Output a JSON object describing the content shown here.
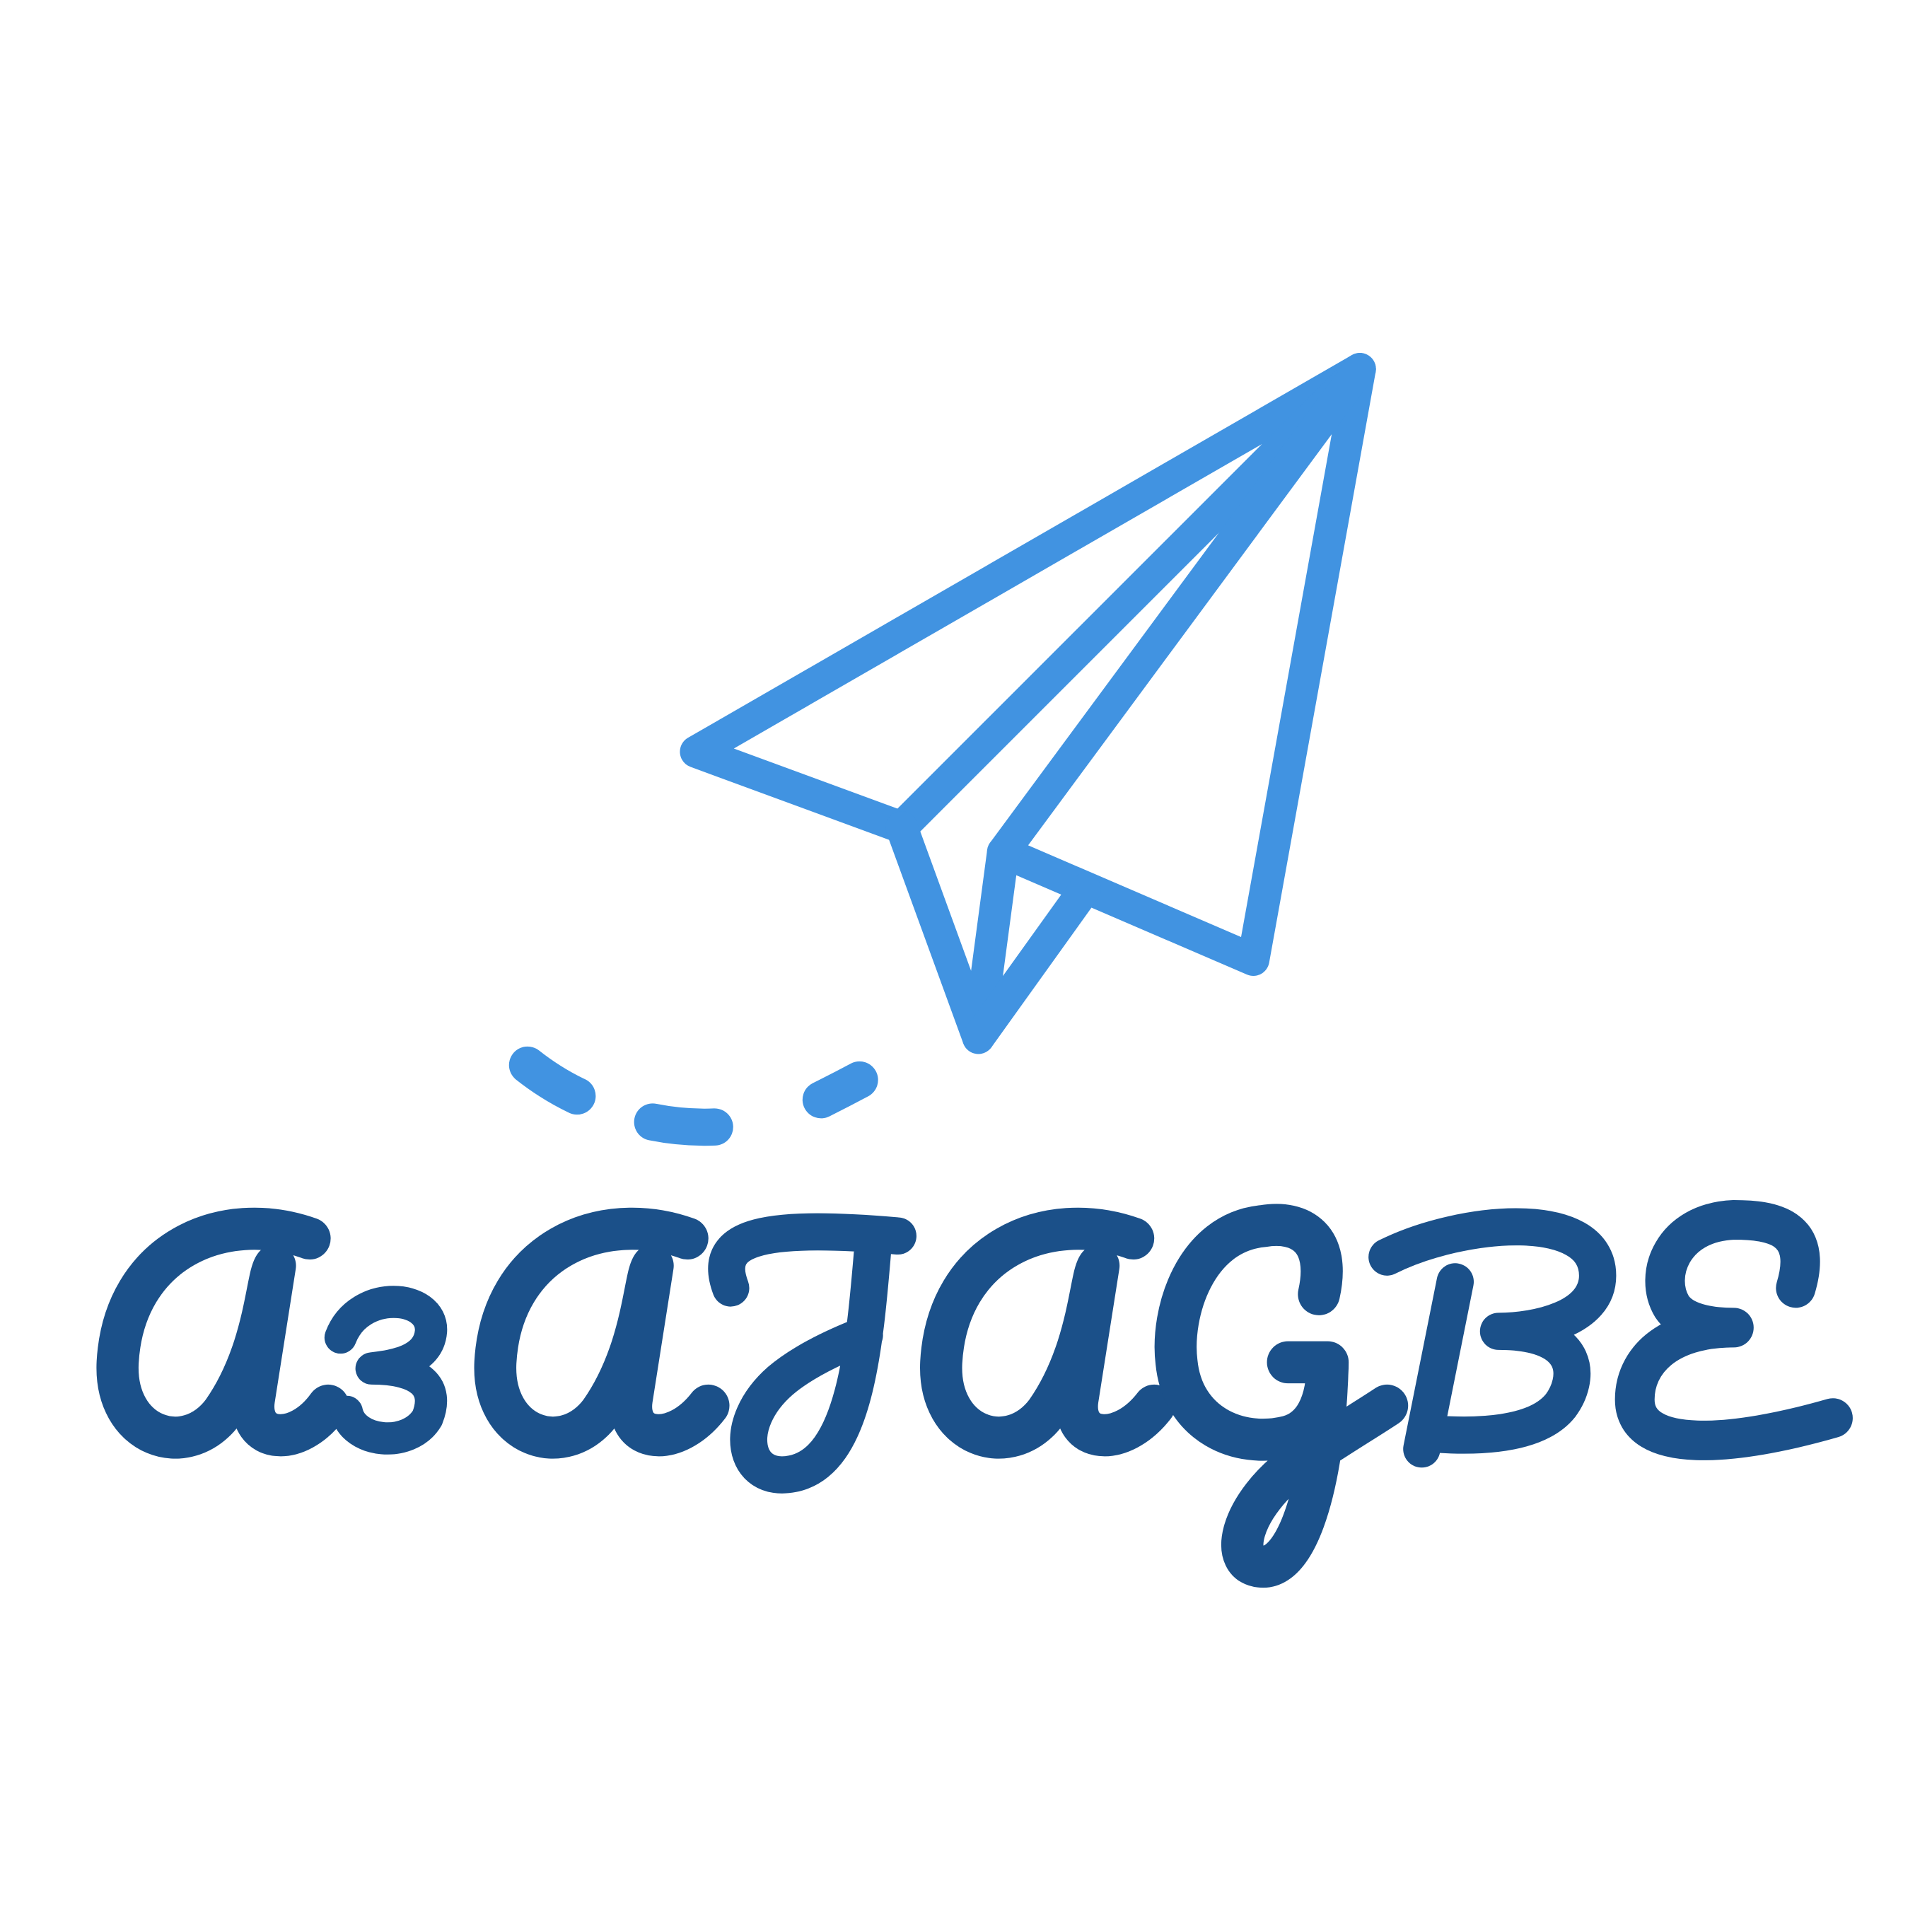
{
  "logo": {
    "wordmark": "азЛаGвE",
    "icon": "paper-plane-icon",
    "colors": {
      "plane": "#4193e1",
      "wordmark": "#1b5089",
      "background": "#ffffff"
    }
  }
}
